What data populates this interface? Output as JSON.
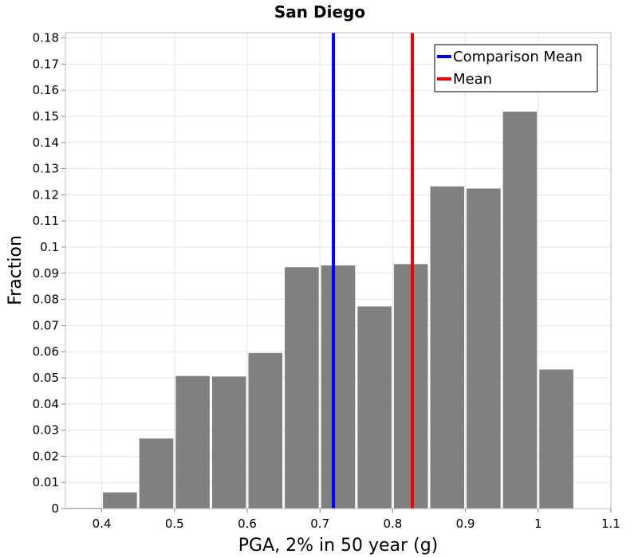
{
  "chart_data": {
    "type": "bar",
    "title": "San Diego",
    "xlabel": "PGA, 2% in 50 year (g)",
    "ylabel": "Fraction",
    "xlim": [
      0.35,
      1.1
    ],
    "ylim": [
      0,
      0.182
    ],
    "bin_width": 0.05,
    "xticks": [
      {
        "value": 0.4,
        "label": "0.4"
      },
      {
        "value": 0.5,
        "label": "0.5"
      },
      {
        "value": 0.6,
        "label": "0.6"
      },
      {
        "value": 0.7,
        "label": "0.7"
      },
      {
        "value": 0.8,
        "label": "0.8"
      },
      {
        "value": 0.9,
        "label": "0.9"
      },
      {
        "value": 1.0,
        "label": "1"
      },
      {
        "value": 1.1,
        "label": "1.1"
      }
    ],
    "yticks": [
      {
        "value": 0,
        "label": "0"
      },
      {
        "value": 0.01,
        "label": "0.01"
      },
      {
        "value": 0.02,
        "label": "0.02"
      },
      {
        "value": 0.03,
        "label": "0.03"
      },
      {
        "value": 0.04,
        "label": "0.04"
      },
      {
        "value": 0.05,
        "label": "0.05"
      },
      {
        "value": 0.06,
        "label": "0.06"
      },
      {
        "value": 0.07,
        "label": "0.07"
      },
      {
        "value": 0.08,
        "label": "0.08"
      },
      {
        "value": 0.09,
        "label": "0.09"
      },
      {
        "value": 0.1,
        "label": "0.1"
      },
      {
        "value": 0.11,
        "label": "0.11"
      },
      {
        "value": 0.12,
        "label": "0.12"
      },
      {
        "value": 0.13,
        "label": "0.13"
      },
      {
        "value": 0.14,
        "label": "0.14"
      },
      {
        "value": 0.15,
        "label": "0.15"
      },
      {
        "value": 0.16,
        "label": "0.16"
      },
      {
        "value": 0.17,
        "label": "0.17"
      },
      {
        "value": 0.18,
        "label": "0.18"
      }
    ],
    "bins": [
      {
        "x": 0.375,
        "value": 0.0003
      },
      {
        "x": 0.425,
        "value": 0.0062
      },
      {
        "x": 0.475,
        "value": 0.0268
      },
      {
        "x": 0.525,
        "value": 0.0507
      },
      {
        "x": 0.575,
        "value": 0.0505
      },
      {
        "x": 0.625,
        "value": 0.0595
      },
      {
        "x": 0.675,
        "value": 0.0923
      },
      {
        "x": 0.725,
        "value": 0.093
      },
      {
        "x": 0.775,
        "value": 0.0773
      },
      {
        "x": 0.825,
        "value": 0.0935
      },
      {
        "x": 0.875,
        "value": 0.1232
      },
      {
        "x": 0.925,
        "value": 0.1224
      },
      {
        "x": 0.975,
        "value": 0.1518
      },
      {
        "x": 1.025,
        "value": 0.0532
      },
      {
        "x": 1.075,
        "value": 0.0
      }
    ],
    "vlines": [
      {
        "name": "Comparison Mean",
        "x": 0.7185,
        "color": "#0000ee"
      },
      {
        "name": "Mean",
        "x": 0.827,
        "color": "#ee0000"
      }
    ],
    "legend_position": "top-right",
    "grid": true,
    "bar_color": "#808080"
  }
}
